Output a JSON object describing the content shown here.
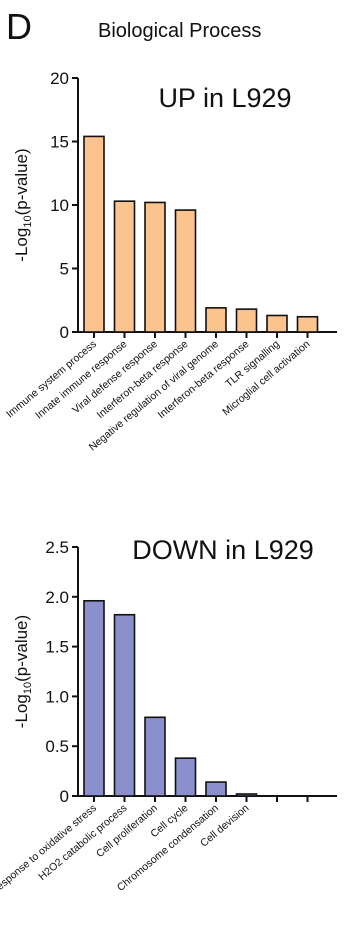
{
  "panel": {
    "letter": "D",
    "heading": "Biological Process"
  },
  "chart_data": [
    {
      "type": "bar",
      "title": "UP in L929",
      "ylabel": "-Log10(p-value)",
      "ylim": [
        0,
        20
      ],
      "yticks": [
        "0",
        "5",
        "10",
        "15",
        "20"
      ],
      "bar_color": "#fbc48e",
      "categories": [
        "Immune system process",
        "Innate immune response",
        "Viral defense response",
        "Interferon-beta response",
        "Negative regulation of viral genome",
        "Interferon-beta response",
        "TLR signalling",
        "Microglial cell activation"
      ],
      "values": [
        15.4,
        10.3,
        10.2,
        9.6,
        1.9,
        1.8,
        1.3,
        1.2
      ]
    },
    {
      "type": "bar",
      "title": "DOWN in L929",
      "ylabel": "-Log10(p-value)",
      "ylim": [
        0,
        2.5
      ],
      "yticks": [
        "0",
        "0.5",
        "1.0",
        "1.5",
        "2.0",
        "2.5"
      ],
      "bar_color": "#8b8fcb",
      "categories": [
        "Response to oxidative stress",
        "H2O2 catabolic process",
        "Cell proliferation",
        "Cell cycle",
        "Chromosome condensation",
        "Cell devision",
        "",
        ""
      ],
      "values": [
        1.96,
        1.82,
        0.79,
        0.38,
        0.14,
        0.02,
        0,
        0
      ]
    }
  ]
}
